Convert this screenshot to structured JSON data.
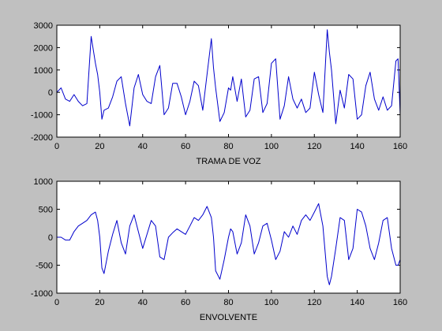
{
  "figure": {
    "background": "#c0c0c0",
    "axes_background": "#ffffff",
    "line_color": "#0000cc"
  },
  "chart_data": [
    {
      "type": "line",
      "title": "",
      "xlabel": "TRAMA DE VOZ",
      "ylabel": "",
      "xlim": [
        0,
        160
      ],
      "ylim": [
        -2000,
        3000
      ],
      "xticks": [
        0,
        20,
        40,
        60,
        80,
        100,
        120,
        140,
        160
      ],
      "yticks": [
        -2000,
        -1000,
        0,
        1000,
        2000,
        3000
      ],
      "grid": false,
      "series": [
        {
          "x": [
            0,
            2,
            4,
            6,
            8,
            10,
            12,
            14,
            16,
            18,
            19,
            20,
            21,
            22,
            24,
            26,
            28,
            30,
            32,
            34,
            36,
            38,
            40,
            42,
            44,
            46,
            48,
            50,
            52,
            54,
            56,
            58,
            60,
            62,
            64,
            66,
            68,
            70,
            72,
            73,
            74,
            76,
            78,
            80,
            81,
            82,
            84,
            86,
            88,
            90,
            92,
            94,
            96,
            98,
            100,
            102,
            104,
            106,
            108,
            110,
            112,
            114,
            116,
            118,
            120,
            122,
            124,
            126,
            127,
            128,
            130,
            132,
            134,
            136,
            138,
            140,
            142,
            144,
            146,
            148,
            150,
            152,
            154,
            156,
            158,
            159,
            160
          ],
          "y": [
            0,
            200,
            -300,
            -400,
            -100,
            -400,
            -600,
            -500,
            2500,
            1300,
            800,
            0,
            -1200,
            -800,
            -700,
            -200,
            500,
            700,
            -500,
            -1500,
            200,
            800,
            -100,
            -400,
            -500,
            700,
            1200,
            -1000,
            -700,
            400,
            400,
            -200,
            -1000,
            -400,
            500,
            300,
            -800,
            800,
            2400,
            1100,
            200,
            -1300,
            -900,
            200,
            100,
            700,
            -400,
            600,
            -1100,
            -800,
            600,
            700,
            -900,
            -500,
            1300,
            1500,
            -1200,
            -600,
            700,
            -300,
            -700,
            -300,
            -900,
            -700,
            900,
            -100,
            -900,
            2800,
            1800,
            1000,
            -1400,
            100,
            -700,
            800,
            600,
            -1200,
            -1000,
            300,
            900,
            -300,
            -800,
            -200,
            -800,
            -600,
            1400,
            1500,
            -1000
          ]
        }
      ]
    },
    {
      "type": "line",
      "title": "",
      "xlabel": "ENVOLVENTE",
      "ylabel": "",
      "xlim": [
        0,
        160
      ],
      "ylim": [
        -1000,
        1000
      ],
      "xticks": [
        0,
        20,
        40,
        60,
        80,
        100,
        120,
        140,
        160
      ],
      "yticks": [
        -1000,
        -500,
        0,
        500,
        1000
      ],
      "grid": false,
      "series": [
        {
          "x": [
            0,
            2,
            4,
            6,
            8,
            10,
            12,
            14,
            16,
            18,
            19,
            20,
            21,
            22,
            24,
            26,
            28,
            30,
            32,
            34,
            36,
            38,
            40,
            42,
            44,
            46,
            48,
            50,
            52,
            54,
            56,
            58,
            60,
            62,
            64,
            66,
            68,
            70,
            72,
            73,
            74,
            76,
            78,
            80,
            81,
            82,
            84,
            86,
            88,
            90,
            92,
            94,
            96,
            98,
            100,
            102,
            104,
            106,
            108,
            110,
            112,
            114,
            116,
            118,
            120,
            122,
            124,
            126,
            127,
            128,
            130,
            132,
            134,
            136,
            138,
            140,
            142,
            144,
            146,
            148,
            150,
            152,
            154,
            156,
            158,
            159,
            160
          ],
          "y": [
            0,
            0,
            -50,
            -50,
            100,
            200,
            250,
            300,
            400,
            450,
            300,
            0,
            -550,
            -650,
            -250,
            50,
            300,
            -100,
            -300,
            200,
            400,
            100,
            -200,
            50,
            300,
            200,
            -350,
            -400,
            0,
            80,
            150,
            100,
            50,
            200,
            350,
            300,
            400,
            550,
            350,
            0,
            -600,
            -750,
            -400,
            0,
            150,
            100,
            -300,
            -100,
            400,
            200,
            -300,
            -100,
            200,
            250,
            -50,
            -400,
            -250,
            100,
            0,
            200,
            50,
            300,
            400,
            300,
            450,
            600,
            200,
            -700,
            -850,
            -700,
            -200,
            350,
            300,
            -400,
            -200,
            500,
            450,
            200,
            -200,
            -400,
            -100,
            300,
            350,
            -200,
            -500,
            -500,
            -400
          ]
        }
      ]
    }
  ]
}
